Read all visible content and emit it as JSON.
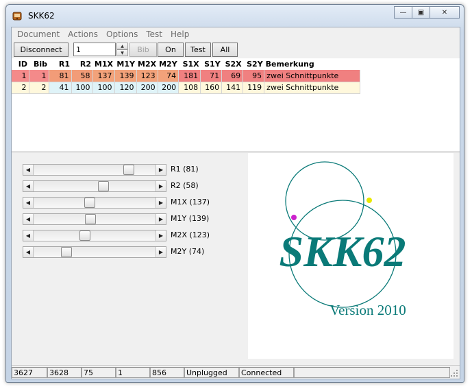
{
  "window": {
    "title": "SKK62"
  },
  "menu": [
    "Document",
    "Actions",
    "Options",
    "Test",
    "Help"
  ],
  "toolbar": {
    "disconnect": "Disconnect",
    "spin_value": "1",
    "bib": "Bib",
    "on": "On",
    "test": "Test",
    "all": "All"
  },
  "table": {
    "headers": [
      "ID",
      "Bib",
      "R1",
      "R2",
      "M1X",
      "M1Y",
      "M2X",
      "M2Y",
      "S1X",
      "S1Y",
      "S2X",
      "S2Y",
      "Bemerkung"
    ],
    "rows": [
      [
        "1",
        "1",
        "81",
        "58",
        "137",
        "139",
        "123",
        "74",
        "181",
        "71",
        "69",
        "95",
        "zwei Schnittpunkte"
      ],
      [
        "2",
        "2",
        "41",
        "100",
        "100",
        "120",
        "200",
        "200",
        "108",
        "160",
        "141",
        "119",
        "zwei Schnittpunkte"
      ]
    ]
  },
  "sliders": [
    {
      "label": "R1 (81)",
      "value": 81,
      "max": 100
    },
    {
      "label": "R2 (58)",
      "value": 58,
      "max": 100
    },
    {
      "label": "M1X (137)",
      "value": 137,
      "max": 300
    },
    {
      "label": "M1Y (139)",
      "value": 139,
      "max": 300
    },
    {
      "label": "M2X (123)",
      "value": 123,
      "max": 300
    },
    {
      "label": "M2Y (74)",
      "value": 74,
      "max": 300
    }
  ],
  "logo": {
    "text": "SKK62",
    "version": "Version 2010",
    "color": "#0a7a78"
  },
  "status": [
    "3627",
    "3628",
    "75",
    "1",
    "856",
    "Unplugged",
    "Connected"
  ]
}
